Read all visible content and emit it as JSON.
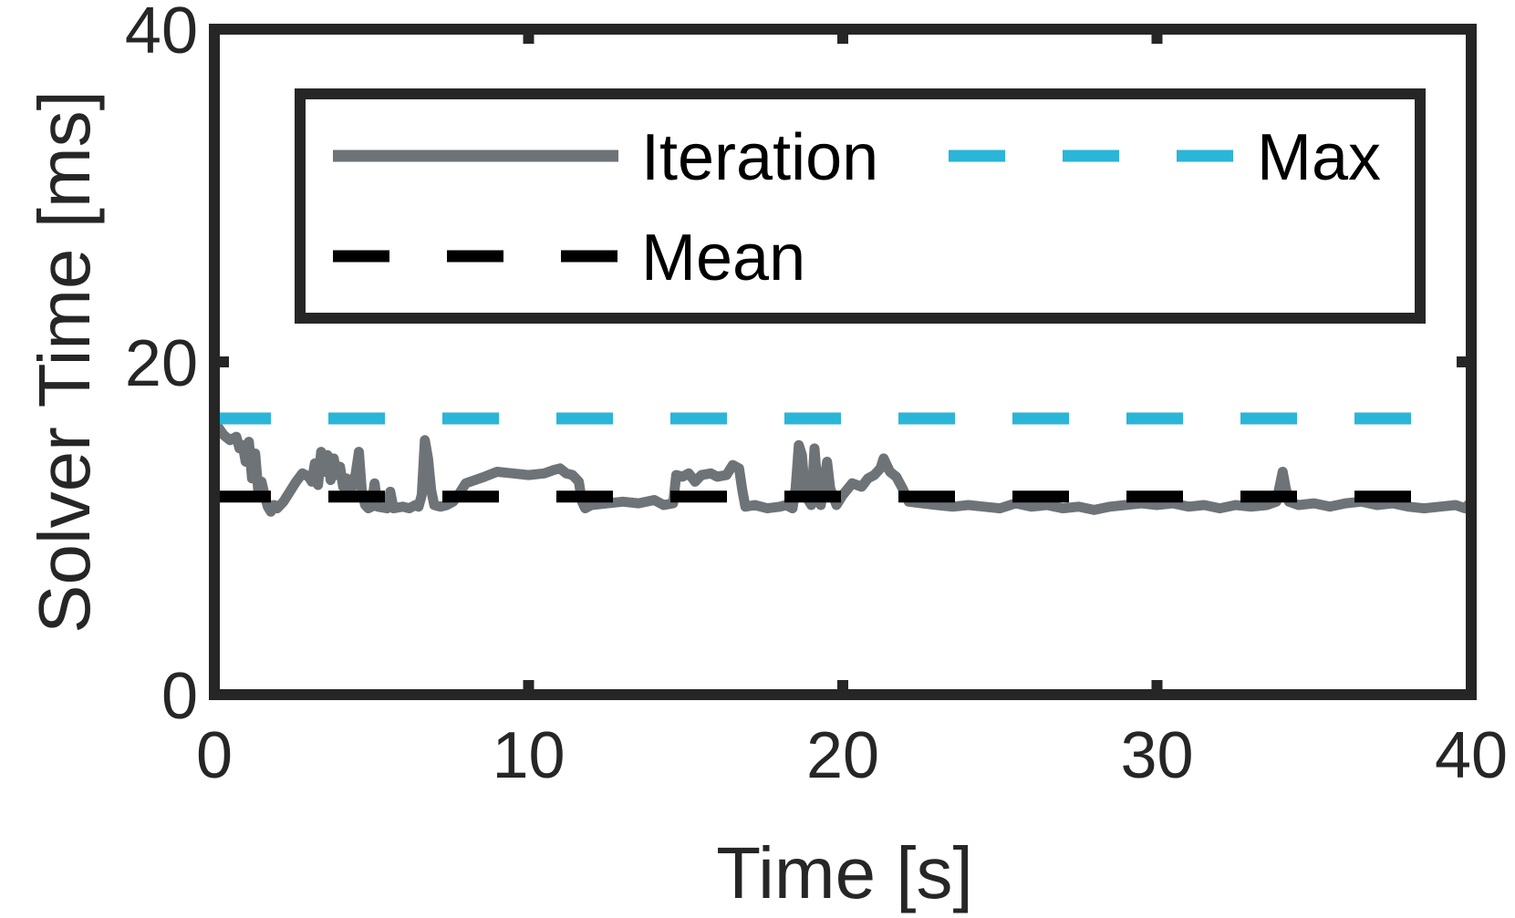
{
  "chart_data": {
    "type": "line",
    "title": "",
    "xlabel": "Time [s]",
    "ylabel": "Solver Time [ms]",
    "xlim": [
      0,
      40
    ],
    "ylim": [
      0,
      40
    ],
    "xticks": [
      0,
      10,
      20,
      30,
      40
    ],
    "yticks": [
      0,
      20,
      40
    ],
    "grid": false,
    "legend": {
      "placement": "top",
      "columns": 2,
      "entries": [
        "Iteration",
        "Max",
        "Mean"
      ]
    },
    "series": [
      {
        "name": "Iteration",
        "style": "solid",
        "color": "#6e7378",
        "points": [
          [
            0.0,
            16.4
          ],
          [
            0.3,
            15.6
          ],
          [
            0.5,
            15.3
          ],
          [
            0.7,
            15.5
          ],
          [
            0.8,
            14.8
          ],
          [
            0.9,
            15.0
          ],
          [
            1.0,
            14.0
          ],
          [
            1.1,
            15.2
          ],
          [
            1.2,
            13.0
          ],
          [
            1.3,
            14.5
          ],
          [
            1.4,
            12.2
          ],
          [
            1.5,
            12.8
          ],
          [
            1.6,
            12.0
          ],
          [
            1.7,
            11.3
          ],
          [
            1.8,
            11.0
          ],
          [
            1.9,
            11.4
          ],
          [
            2.0,
            11.2
          ],
          [
            2.2,
            11.6
          ],
          [
            2.4,
            12.2
          ],
          [
            2.6,
            12.8
          ],
          [
            2.8,
            13.3
          ],
          [
            3.0,
            13.1
          ],
          [
            3.1,
            12.8
          ],
          [
            3.2,
            13.9
          ],
          [
            3.3,
            12.6
          ],
          [
            3.4,
            14.6
          ],
          [
            3.5,
            13.4
          ],
          [
            3.6,
            14.4
          ],
          [
            3.7,
            12.9
          ],
          [
            3.8,
            14.2
          ],
          [
            3.9,
            13.2
          ],
          [
            4.0,
            13.7
          ],
          [
            4.1,
            12.5
          ],
          [
            4.2,
            13.0
          ],
          [
            4.3,
            12.0
          ],
          [
            4.4,
            12.6
          ],
          [
            4.5,
            13.3
          ],
          [
            4.6,
            14.6
          ],
          [
            4.7,
            12.1
          ],
          [
            4.8,
            11.4
          ],
          [
            4.9,
            11.2
          ],
          [
            5.0,
            11.3
          ],
          [
            5.1,
            12.7
          ],
          [
            5.2,
            11.3
          ],
          [
            5.5,
            11.2
          ],
          [
            5.6,
            12.2
          ],
          [
            5.7,
            11.2
          ],
          [
            6.0,
            11.3
          ],
          [
            6.2,
            11.2
          ],
          [
            6.4,
            11.4
          ],
          [
            6.5,
            11.3
          ],
          [
            6.6,
            12.0
          ],
          [
            6.7,
            15.3
          ],
          [
            6.8,
            14.2
          ],
          [
            6.9,
            12.3
          ],
          [
            7.0,
            11.4
          ],
          [
            7.2,
            11.3
          ],
          [
            7.4,
            11.4
          ],
          [
            7.6,
            11.6
          ],
          [
            7.8,
            12.1
          ],
          [
            8.0,
            12.7
          ],
          [
            8.3,
            12.9
          ],
          [
            8.6,
            13.1
          ],
          [
            9.0,
            13.4
          ],
          [
            9.5,
            13.3
          ],
          [
            10.0,
            13.2
          ],
          [
            10.5,
            13.3
          ],
          [
            10.8,
            13.5
          ],
          [
            11.0,
            13.6
          ],
          [
            11.2,
            13.3
          ],
          [
            11.4,
            13.2
          ],
          [
            11.6,
            12.8
          ],
          [
            11.7,
            11.6
          ],
          [
            11.8,
            11.2
          ],
          [
            12.0,
            11.4
          ],
          [
            12.5,
            11.5
          ],
          [
            13.0,
            11.6
          ],
          [
            13.5,
            11.5
          ],
          [
            14.0,
            11.7
          ],
          [
            14.3,
            11.4
          ],
          [
            14.6,
            11.5
          ],
          [
            14.7,
            13.2
          ],
          [
            14.9,
            13.1
          ],
          [
            15.1,
            13.3
          ],
          [
            15.3,
            12.8
          ],
          [
            15.5,
            13.2
          ],
          [
            15.8,
            13.3
          ],
          [
            16.0,
            13.1
          ],
          [
            16.3,
            13.2
          ],
          [
            16.5,
            13.8
          ],
          [
            16.7,
            13.6
          ],
          [
            16.8,
            12.3
          ],
          [
            16.9,
            11.3
          ],
          [
            17.2,
            11.4
          ],
          [
            17.6,
            11.2
          ],
          [
            18.0,
            11.3
          ],
          [
            18.2,
            11.4
          ],
          [
            18.4,
            11.2
          ],
          [
            18.5,
            12.4
          ],
          [
            18.6,
            15.0
          ],
          [
            18.7,
            14.4
          ],
          [
            18.8,
            12.0
          ],
          [
            19.0,
            11.4
          ],
          [
            19.1,
            14.8
          ],
          [
            19.2,
            12.4
          ],
          [
            19.3,
            11.4
          ],
          [
            19.5,
            14.0
          ],
          [
            19.6,
            12.4
          ],
          [
            19.8,
            11.4
          ],
          [
            20.0,
            12.0
          ],
          [
            20.3,
            12.7
          ],
          [
            20.6,
            12.5
          ],
          [
            20.8,
            13.0
          ],
          [
            21.0,
            13.2
          ],
          [
            21.2,
            13.6
          ],
          [
            21.3,
            14.2
          ],
          [
            21.5,
            13.4
          ],
          [
            21.7,
            13.1
          ],
          [
            21.9,
            12.4
          ],
          [
            22.1,
            11.6
          ],
          [
            22.5,
            11.5
          ],
          [
            23.0,
            11.4
          ],
          [
            23.5,
            11.3
          ],
          [
            24.0,
            11.4
          ],
          [
            24.5,
            11.3
          ],
          [
            25.0,
            11.2
          ],
          [
            25.5,
            11.5
          ],
          [
            26.0,
            11.3
          ],
          [
            26.5,
            11.4
          ],
          [
            27.0,
            11.2
          ],
          [
            27.5,
            11.3
          ],
          [
            28.0,
            11.1
          ],
          [
            28.5,
            11.3
          ],
          [
            29.0,
            11.4
          ],
          [
            29.5,
            11.5
          ],
          [
            30.0,
            11.4
          ],
          [
            30.5,
            11.5
          ],
          [
            31.0,
            11.3
          ],
          [
            31.5,
            11.4
          ],
          [
            32.0,
            11.2
          ],
          [
            32.5,
            11.4
          ],
          [
            33.0,
            11.3
          ],
          [
            33.5,
            11.4
          ],
          [
            33.8,
            11.6
          ],
          [
            34.0,
            13.4
          ],
          [
            34.1,
            12.4
          ],
          [
            34.2,
            11.6
          ],
          [
            34.5,
            11.4
          ],
          [
            35.0,
            11.5
          ],
          [
            35.5,
            11.3
          ],
          [
            36.0,
            11.5
          ],
          [
            36.5,
            11.6
          ],
          [
            37.0,
            11.4
          ],
          [
            37.5,
            11.5
          ],
          [
            38.0,
            11.3
          ],
          [
            38.5,
            11.2
          ],
          [
            39.0,
            11.3
          ],
          [
            39.5,
            11.4
          ],
          [
            39.8,
            11.2
          ],
          [
            40.0,
            11.6
          ]
        ]
      },
      {
        "name": "Max",
        "style": "dashed",
        "color": "#2bb5d8",
        "points": [
          [
            0,
            16.6
          ],
          [
            40,
            16.6
          ]
        ]
      },
      {
        "name": "Mean",
        "style": "dashed",
        "color": "#000000",
        "points": [
          [
            0,
            11.9
          ],
          [
            40,
            11.9
          ]
        ]
      }
    ]
  }
}
